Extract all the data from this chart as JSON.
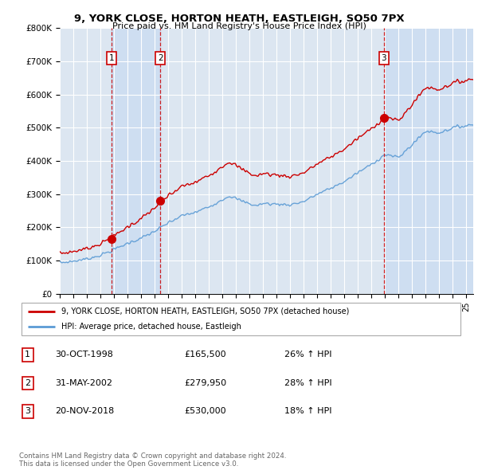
{
  "title": "9, YORK CLOSE, HORTON HEATH, EASTLEIGH, SO50 7PX",
  "subtitle": "Price paid vs. HM Land Registry's House Price Index (HPI)",
  "ylim": [
    0,
    800000
  ],
  "xlim_start": 1995.0,
  "xlim_end": 2025.5,
  "yticks": [
    0,
    100000,
    200000,
    300000,
    400000,
    500000,
    600000,
    700000,
    800000
  ],
  "ytick_labels": [
    "£0",
    "£100K",
    "£200K",
    "£300K",
    "£400K",
    "£500K",
    "£600K",
    "£700K",
    "£800K"
  ],
  "xticks": [
    1995,
    1996,
    1997,
    1998,
    1999,
    2000,
    2001,
    2002,
    2003,
    2004,
    2005,
    2006,
    2007,
    2008,
    2009,
    2010,
    2011,
    2012,
    2013,
    2014,
    2015,
    2016,
    2017,
    2018,
    2019,
    2020,
    2021,
    2022,
    2023,
    2024,
    2025
  ],
  "sale_dates": [
    1998.83,
    2002.42,
    2018.9
  ],
  "sale_prices": [
    165500,
    279950,
    530000
  ],
  "sale_labels": [
    "1",
    "2",
    "3"
  ],
  "legend_line1": "9, YORK CLOSE, HORTON HEATH, EASTLEIGH, SO50 7PX (detached house)",
  "legend_line2": "HPI: Average price, detached house, Eastleigh",
  "table_rows": [
    [
      "1",
      "30-OCT-1998",
      "£165,500",
      "26% ↑ HPI"
    ],
    [
      "2",
      "31-MAY-2002",
      "£279,950",
      "28% ↑ HPI"
    ],
    [
      "3",
      "20-NOV-2018",
      "£530,000",
      "18% ↑ HPI"
    ]
  ],
  "footer": "Contains HM Land Registry data © Crown copyright and database right 2024.\nThis data is licensed under the Open Government Licence v3.0.",
  "red_color": "#cc0000",
  "blue_color": "#5b9bd5",
  "bg_color": "#dce6f1",
  "shade_color": "#c5d9f1",
  "grid_color": "#ffffff"
}
